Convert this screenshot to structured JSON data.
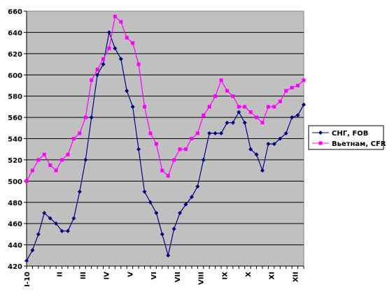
{
  "chart_data": {
    "type": "line",
    "title": "",
    "xlabel": "",
    "ylabel": "",
    "ylim": [
      420,
      660
    ],
    "y_ticks": [
      420,
      440,
      460,
      480,
      500,
      520,
      540,
      560,
      580,
      600,
      620,
      640,
      660
    ],
    "grid": "horizontal",
    "plot_background": "#c0c0c0",
    "legend_position": "right",
    "x_tick_labels": [
      "I-10",
      "II",
      "III",
      "IV",
      "V",
      "VI",
      "VII",
      "VIII",
      "IX",
      "X",
      "XI",
      "XII"
    ],
    "series": [
      {
        "name": "СНГ, FOB",
        "color": "#000080",
        "marker": "diamond",
        "values": [
          425,
          435,
          450,
          470,
          465,
          460,
          453,
          453,
          465,
          490,
          520,
          560,
          600,
          610,
          640,
          625,
          615,
          585,
          570,
          530,
          490,
          480,
          470,
          450,
          430,
          455,
          470,
          478,
          485,
          495,
          520,
          545,
          545,
          545,
          555,
          555,
          565,
          555,
          530,
          525,
          510,
          535,
          535,
          540,
          545,
          560,
          562,
          572
        ]
      },
      {
        "name": "Вьетнам, CFR",
        "color": "#ff00ff",
        "marker": "square",
        "values": [
          500,
          510,
          520,
          525,
          515,
          510,
          520,
          525,
          540,
          545,
          560,
          595,
          605,
          615,
          625,
          655,
          650,
          635,
          630,
          610,
          570,
          545,
          535,
          510,
          505,
          520,
          530,
          530,
          540,
          545,
          562,
          570,
          580,
          595,
          585,
          580,
          570,
          570,
          565,
          560,
          555,
          570,
          570,
          575,
          585,
          588,
          590,
          595
        ]
      }
    ]
  }
}
